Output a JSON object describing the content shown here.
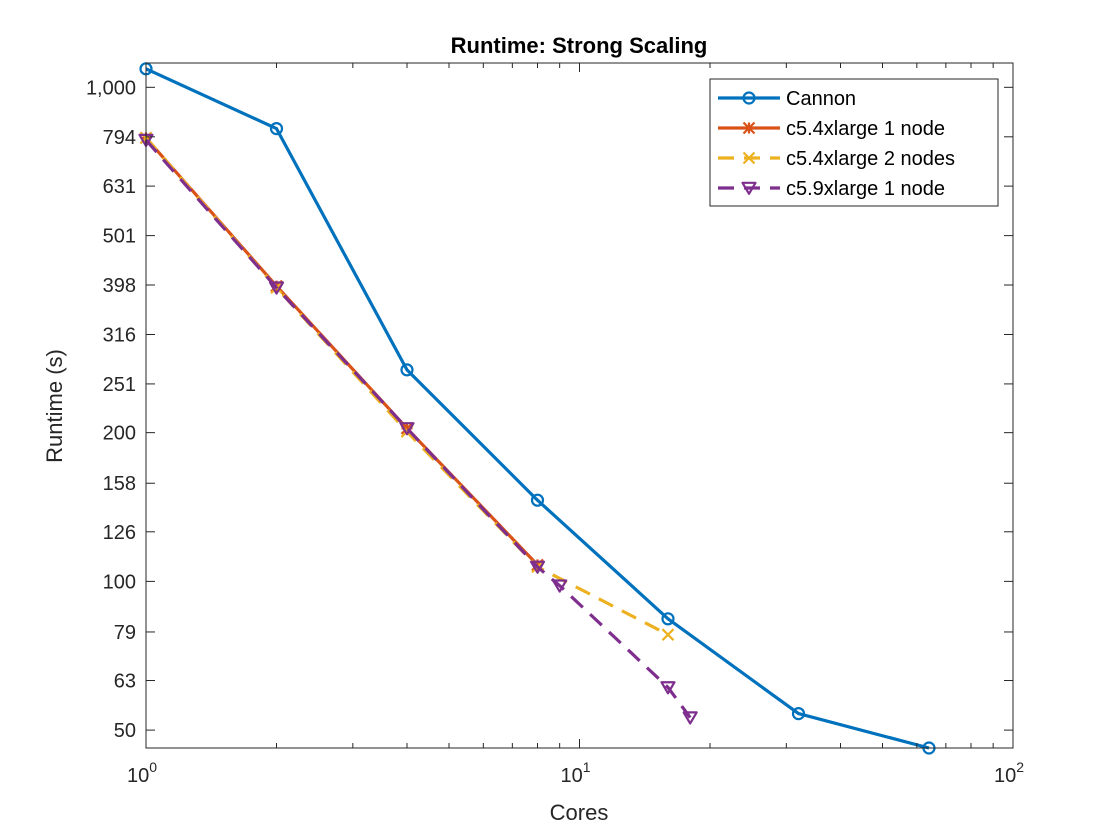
{
  "chart_data": {
    "type": "line",
    "title": "Runtime: Strong Scaling",
    "xlabel": "Cores",
    "ylabel": "Runtime (s)",
    "xscale": "log",
    "yscale": "log",
    "xlim": [
      1,
      100
    ],
    "ylim": [
      46,
      1120
    ],
    "x_ticks": [
      1,
      10,
      100
    ],
    "x_tick_labels": [
      {
        "base": "10",
        "exp": "0"
      },
      {
        "base": "10",
        "exp": "1"
      },
      {
        "base": "10",
        "exp": "2"
      }
    ],
    "y_ticks": [
      50,
      63,
      79,
      100,
      126,
      158,
      200,
      251,
      316,
      398,
      501,
      631,
      794,
      1000
    ],
    "y_tick_labels": [
      "50",
      "63",
      "79",
      "100",
      "126",
      "158",
      "200",
      "251",
      "316",
      "398",
      "501",
      "631",
      "794",
      "1,000"
    ],
    "grid": false,
    "legend_position": "top-right",
    "series": [
      {
        "name": "Cannon",
        "color": "#0072BD",
        "line_style": "solid",
        "marker": "circle",
        "points": [
          [
            1,
            1090
          ],
          [
            2,
            825
          ],
          [
            4,
            268
          ],
          [
            8,
            146
          ],
          [
            16,
            84
          ],
          [
            32,
            54
          ],
          [
            64,
            46
          ]
        ]
      },
      {
        "name": "c5.4xlarge 1 node",
        "color": "#D95319",
        "line_style": "solid",
        "marker": "star",
        "points": [
          [
            1,
            790
          ],
          [
            2,
            396
          ],
          [
            4,
            204
          ],
          [
            8,
            108
          ]
        ]
      },
      {
        "name": "c5.4xlarge 2 nodes",
        "color": "#EDB120",
        "line_style": "dashed",
        "marker": "cross",
        "points": [
          [
            1,
            790
          ],
          [
            2,
            393
          ],
          [
            4,
            201
          ],
          [
            8,
            107
          ],
          [
            16,
            78
          ]
        ]
      },
      {
        "name": "c5.9xlarge 1 node",
        "color": "#7E2F8E",
        "line_style": "dashed",
        "marker": "triangle-down",
        "points": [
          [
            1,
            782
          ],
          [
            2,
            393
          ],
          [
            4,
            204
          ],
          [
            8,
            107
          ],
          [
            9,
            98
          ],
          [
            16,
            61
          ],
          [
            18,
            53
          ]
        ]
      }
    ]
  }
}
